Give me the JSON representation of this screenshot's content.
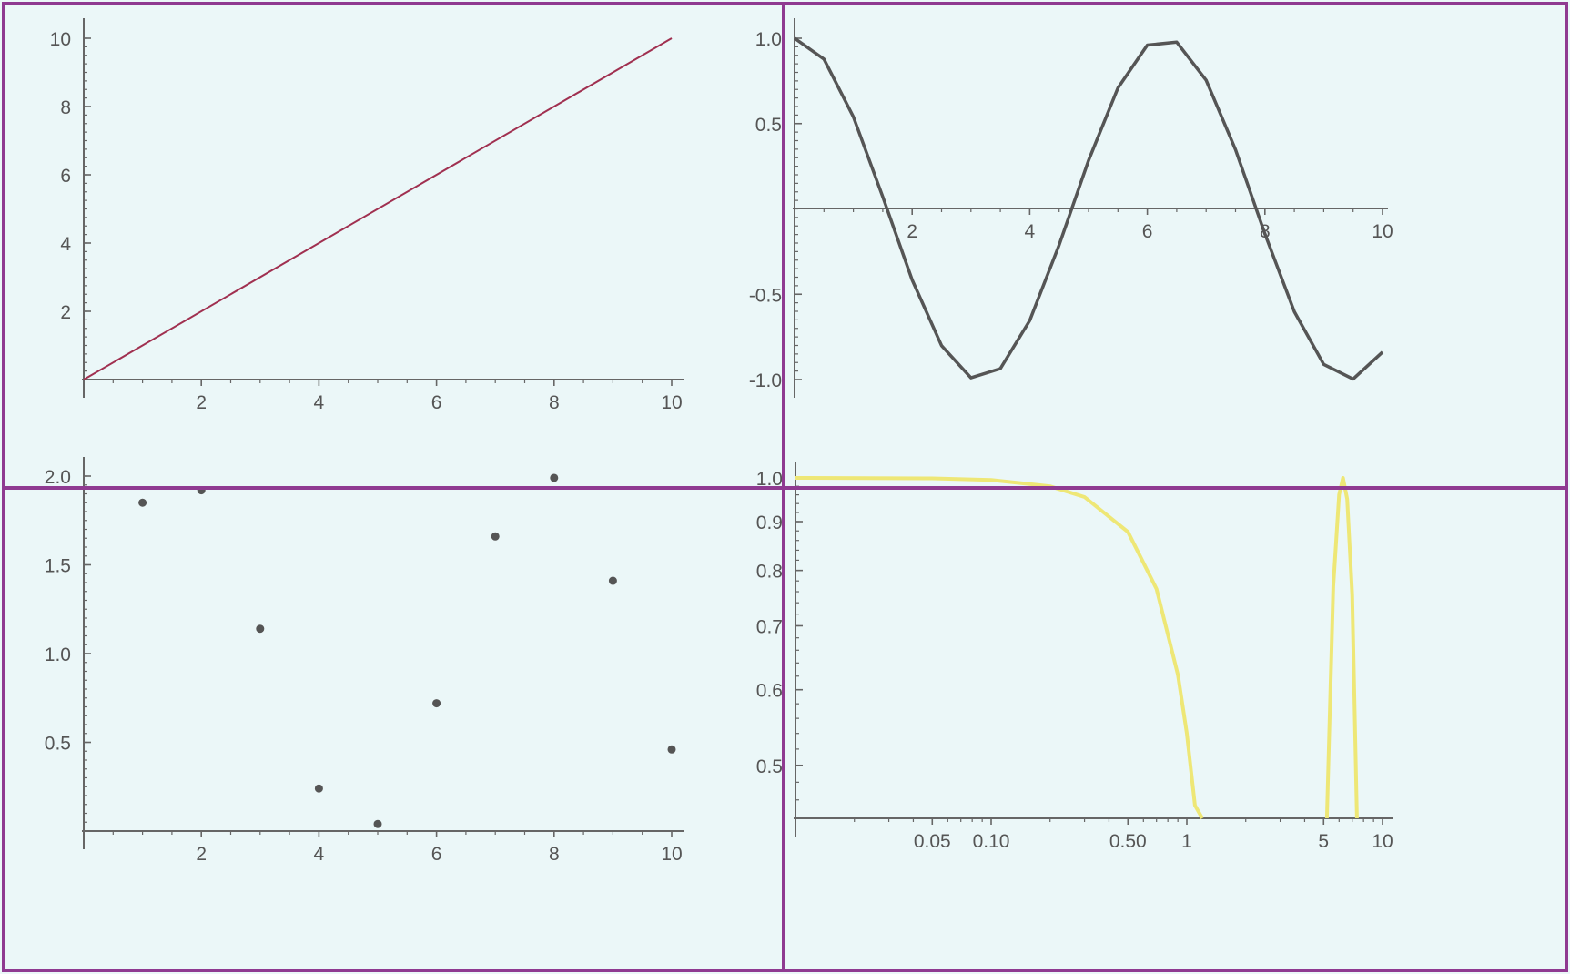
{
  "colors": {
    "background": "#ebf7f8",
    "frame": "#8f3a91",
    "axis": "#666666",
    "line": "#a03050",
    "cosine": "#555555",
    "points": "#555555",
    "loglog": "#eee776"
  },
  "chart_data": [
    {
      "type": "line",
      "title": "",
      "xlabel": "",
      "ylabel": "",
      "xlim": [
        0,
        10
      ],
      "ylim": [
        0,
        10
      ],
      "grid": false,
      "x": [
        0,
        10
      ],
      "y": [
        0,
        10
      ],
      "xticks": [
        2,
        4,
        6,
        8,
        10
      ],
      "xtick_labels": [
        "2",
        "4",
        "6",
        "8",
        "10"
      ],
      "yticks": [
        2,
        4,
        6,
        8,
        10
      ],
      "ytick_labels": [
        "2",
        "4",
        "6",
        "8",
        "10"
      ],
      "color": "#a03050"
    },
    {
      "type": "line",
      "title": "",
      "xlabel": "",
      "ylabel": "",
      "xlim": [
        0,
        10
      ],
      "ylim": [
        -1,
        1
      ],
      "grid": false,
      "x": [
        0,
        0.5,
        1,
        1.5,
        2,
        2.5,
        3,
        3.5,
        4,
        4.5,
        5,
        5.5,
        6,
        6.5,
        7,
        7.5,
        8,
        8.5,
        9,
        9.5,
        10
      ],
      "y": [
        1.0,
        0.878,
        0.54,
        0.071,
        -0.416,
        -0.801,
        -0.99,
        -0.936,
        -0.654,
        -0.211,
        0.284,
        0.709,
        0.96,
        0.977,
        0.754,
        0.347,
        -0.146,
        -0.602,
        -0.911,
        -0.997,
        -0.839
      ],
      "xticks": [
        2,
        4,
        6,
        8,
        10
      ],
      "xtick_labels": [
        "2",
        "4",
        "6",
        "8",
        "10"
      ],
      "yticks": [
        1.0,
        0.5,
        -0.5,
        -1.0
      ],
      "ytick_labels": [
        "1.0",
        "0.5",
        "-0.5",
        "-1.0"
      ],
      "color": "#555555"
    },
    {
      "type": "scatter",
      "title": "",
      "xlabel": "",
      "ylabel": "",
      "xlim": [
        0,
        10
      ],
      "ylim": [
        0,
        2.0
      ],
      "grid": false,
      "x": [
        1,
        2,
        3,
        4,
        5,
        6,
        7,
        8,
        9,
        10
      ],
      "y": [
        1.85,
        1.92,
        1.14,
        0.24,
        0.04,
        0.72,
        1.66,
        1.99,
        1.41,
        0.46
      ],
      "xticks": [
        2,
        4,
        6,
        8,
        10
      ],
      "xtick_labels": [
        "2",
        "4",
        "6",
        "8",
        "10"
      ],
      "yticks": [
        0.5,
        1.0,
        1.5,
        2.0
      ],
      "ytick_labels": [
        "0.5",
        "1.0",
        "1.5",
        "2.0"
      ],
      "color": "#555555"
    },
    {
      "type": "line",
      "title": "",
      "xlabel": "",
      "ylabel": "",
      "xscale": "log",
      "yscale": "log",
      "xlim": [
        0.01,
        10
      ],
      "ylim": [
        0.44,
        1.05
      ],
      "grid": false,
      "series": [
        {
          "x": [
            0.01,
            0.05,
            0.1,
            0.2,
            0.3,
            0.5,
            0.7,
            0.9,
            1.0,
            1.1,
            1.2
          ],
          "y": [
            1.0,
            0.999,
            0.995,
            0.98,
            0.955,
            0.878,
            0.765,
            0.622,
            0.54,
            0.454,
            0.44
          ]
        },
        {
          "x": [
            5.2,
            5.6,
            6.0,
            6.28,
            6.6,
            7.0,
            7.4
          ],
          "y": [
            0.44,
            0.77,
            0.96,
            1.0,
            0.95,
            0.754,
            0.44
          ]
        }
      ],
      "xticks": [
        0.05,
        0.1,
        0.5,
        1,
        5,
        10
      ],
      "xtick_labels": [
        "0.05",
        "0.10",
        "0.50",
        "1",
        "5",
        "10"
      ],
      "yticks": [
        1.0,
        0.9,
        0.8,
        0.7,
        0.6,
        0.5
      ],
      "ytick_labels": [
        "1.0",
        "0.9",
        "0.8",
        "0.7",
        "0.6",
        "0.5"
      ],
      "color": "#eee776"
    }
  ]
}
